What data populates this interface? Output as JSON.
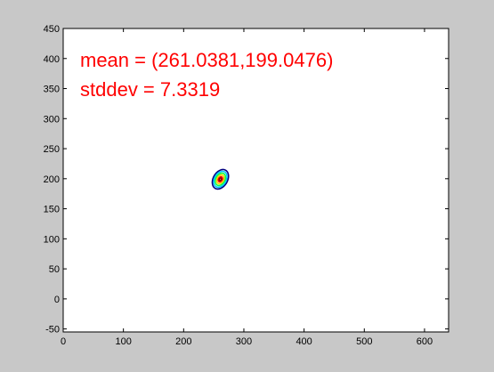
{
  "chart_data": {
    "type": "contour",
    "xlim": [
      0,
      640
    ],
    "ylim": [
      -55,
      450
    ],
    "xticks": [
      0,
      100,
      200,
      300,
      400,
      500,
      600
    ],
    "yticks": [
      -50,
      0,
      50,
      100,
      150,
      200,
      250,
      300,
      350,
      400,
      450
    ],
    "grid": false,
    "annotations": [
      {
        "text": "mean = (261.0381,199.0476)",
        "color": "#ff0000"
      },
      {
        "text": "stddev = 7.3319",
        "color": "#ff0000"
      }
    ],
    "gaussian": {
      "mean": [
        261.0381,
        199.0476
      ],
      "stddev": 7.3319
    },
    "contour_levels": [
      {
        "sigma": 1.9,
        "color": "#000080"
      },
      {
        "sigma": 1.55,
        "color": "#00c8ff"
      },
      {
        "sigma": 1.2,
        "color": "#10ff40"
      },
      {
        "sigma": 0.85,
        "color": "#ffd000"
      },
      {
        "sigma": 0.5,
        "color": "#ff0000"
      },
      {
        "sigma": 0.25,
        "color": "#800000"
      }
    ]
  }
}
